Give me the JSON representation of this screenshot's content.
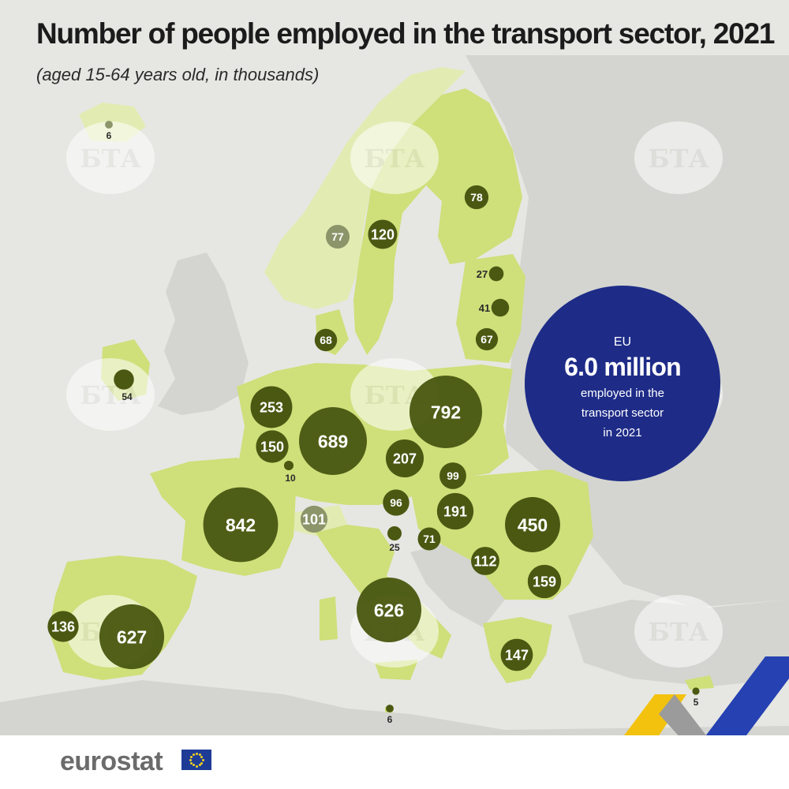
{
  "title": "Number of people employed in the transport sector, 2021",
  "subtitle": "(aged 15-64 years old, in thousands)",
  "colors": {
    "sea": "#e6e7e2",
    "non_eu_land": "#d4d5d0",
    "eu_land": "#cfdf7a",
    "efta_land": "#e2ebb2",
    "bubble_eu": "#4a5812",
    "bubble_efta": "#8c946a",
    "eu_total_circle": "#1e2c88",
    "watermark": "#ffffff"
  },
  "map_data": {
    "type": "proportional-symbol-map",
    "unit": "thousands",
    "values": [
      {
        "label": "6",
        "value": 6,
        "group": "efta"
      },
      {
        "label": "78",
        "value": 78,
        "group": "eu"
      },
      {
        "label": "77",
        "value": 77,
        "group": "efta"
      },
      {
        "label": "120",
        "value": 120,
        "group": "eu"
      },
      {
        "label": "27",
        "value": 27,
        "group": "eu"
      },
      {
        "label": "41",
        "value": 41,
        "group": "eu"
      },
      {
        "label": "67",
        "value": 67,
        "group": "eu"
      },
      {
        "label": "68",
        "value": 68,
        "group": "eu"
      },
      {
        "label": "54",
        "value": 54,
        "group": "eu"
      },
      {
        "label": "253",
        "value": 253,
        "group": "eu"
      },
      {
        "label": "150",
        "value": 150,
        "group": "eu"
      },
      {
        "label": "10",
        "value": 10,
        "group": "eu"
      },
      {
        "label": "689",
        "value": 689,
        "group": "eu"
      },
      {
        "label": "792",
        "value": 792,
        "group": "eu"
      },
      {
        "label": "207",
        "value": 207,
        "group": "eu"
      },
      {
        "label": "99",
        "value": 99,
        "group": "eu"
      },
      {
        "label": "96",
        "value": 96,
        "group": "eu"
      },
      {
        "label": "191",
        "value": 191,
        "group": "eu"
      },
      {
        "label": "450",
        "value": 450,
        "group": "eu"
      },
      {
        "label": "842",
        "value": 842,
        "group": "eu"
      },
      {
        "label": "101",
        "value": 101,
        "group": "efta"
      },
      {
        "label": "25",
        "value": 25,
        "group": "eu"
      },
      {
        "label": "71",
        "value": 71,
        "group": "eu"
      },
      {
        "label": "112",
        "value": 112,
        "group": "eu"
      },
      {
        "label": "159",
        "value": 159,
        "group": "eu"
      },
      {
        "label": "626",
        "value": 626,
        "group": "eu"
      },
      {
        "label": "136",
        "value": 136,
        "group": "eu"
      },
      {
        "label": "627",
        "value": 627,
        "group": "eu"
      },
      {
        "label": "147",
        "value": 147,
        "group": "eu"
      },
      {
        "label": "6",
        "value": 6,
        "group": "eu"
      },
      {
        "label": "5",
        "value": 5,
        "group": "eu"
      }
    ]
  },
  "eu_total": {
    "label": "EU",
    "value": "6.0 million",
    "caption_line1": "employed in the",
    "caption_line2": "transport sector",
    "caption_line3": "in 2021"
  },
  "watermark": {
    "text": "БТА"
  },
  "footer": {
    "logo_text": "eurostat"
  }
}
